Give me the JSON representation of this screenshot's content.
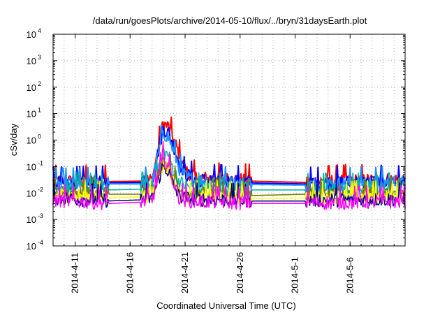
{
  "chart_data": {
    "type": "line",
    "title": "/data/run/goesPlots/archive/2014-05-10/flux/../bryn/31daysEarth.plot",
    "xlabel": "Coordinated Universal Time (UTC)",
    "ylabel": "cSv/day",
    "yscale": "log",
    "ylim_exponents": [
      -4,
      4
    ],
    "ytick_base": "10",
    "ytick_exponents": [
      "-4",
      "-3",
      "-2",
      "-1",
      "0",
      "1",
      "2",
      "3",
      "4"
    ],
    "xlim": [
      "2014-04-09",
      "2014-05-11"
    ],
    "xtick_labels": [
      "2014-4-11",
      "2014-4-16",
      "2014-4-21",
      "2014-4-26",
      "2014-5-1",
      "2014-5-6"
    ],
    "xtick_dates": [
      "2014-04-11",
      "2014-04-16",
      "2014-04-21",
      "2014-04-26",
      "2014-05-01",
      "2014-05-06"
    ],
    "grid": true,
    "data_gaps": [
      [
        "2014-04-14",
        "2014-04-17"
      ],
      [
        "2014-04-27",
        "2014-05-02"
      ]
    ],
    "series": [
      {
        "color": "#ff0000",
        "values": [
          [
            "2014-04-09",
            0.025
          ],
          [
            "2014-04-14",
            0.027
          ],
          [
            "2014-04-17",
            0.028
          ],
          [
            "2014-04-18",
            0.03
          ],
          [
            "2014-04-19",
            4.0
          ],
          [
            "2014-04-19T12",
            3.0
          ],
          [
            "2014-04-20",
            0.9
          ],
          [
            "2014-04-20T12",
            0.25
          ],
          [
            "2014-04-21",
            0.07
          ],
          [
            "2014-04-22",
            0.035
          ],
          [
            "2014-04-27",
            0.028
          ],
          [
            "2014-05-02",
            0.025
          ],
          [
            "2014-05-11",
            0.03
          ]
        ]
      },
      {
        "color": "#0000ff",
        "values": [
          [
            "2014-04-09",
            0.022
          ],
          [
            "2014-04-14",
            0.024
          ],
          [
            "2014-04-17",
            0.025
          ],
          [
            "2014-04-18",
            0.027
          ],
          [
            "2014-04-19",
            2.5
          ],
          [
            "2014-04-19T12",
            1.8
          ],
          [
            "2014-04-20",
            0.5
          ],
          [
            "2014-04-20T12",
            0.12
          ],
          [
            "2014-04-21",
            0.05
          ],
          [
            "2014-04-22",
            0.03
          ],
          [
            "2014-04-27",
            0.024
          ],
          [
            "2014-05-02",
            0.022
          ],
          [
            "2014-05-11",
            0.026
          ]
        ]
      },
      {
        "color": "#1e90ff",
        "values": [
          [
            "2014-04-09",
            0.02
          ],
          [
            "2014-04-14",
            0.022
          ],
          [
            "2014-04-17",
            0.022
          ],
          [
            "2014-04-18",
            0.024
          ],
          [
            "2014-04-19",
            1.8
          ],
          [
            "2014-04-19T12",
            1.2
          ],
          [
            "2014-04-20",
            0.3
          ],
          [
            "2014-04-20T12",
            0.08
          ],
          [
            "2014-04-21",
            0.04
          ],
          [
            "2014-04-22",
            0.027
          ],
          [
            "2014-04-27",
            0.021
          ],
          [
            "2014-05-02",
            0.02
          ],
          [
            "2014-05-11",
            0.024
          ]
        ]
      },
      {
        "color": "#00b3a0",
        "values": [
          [
            "2014-04-09",
            0.015
          ],
          [
            "2014-04-14",
            0.013
          ],
          [
            "2014-04-17",
            0.014
          ],
          [
            "2014-04-18",
            0.016
          ],
          [
            "2014-04-19",
            0.35
          ],
          [
            "2014-04-19T12",
            0.25
          ],
          [
            "2014-04-20",
            0.06
          ],
          [
            "2014-04-20T12",
            0.025
          ],
          [
            "2014-04-21",
            0.018
          ],
          [
            "2014-04-22",
            0.014
          ],
          [
            "2014-04-27",
            0.013
          ],
          [
            "2014-05-02",
            0.013
          ],
          [
            "2014-05-11",
            0.014
          ]
        ]
      },
      {
        "color": "#7a7a00",
        "values": [
          [
            "2014-04-09",
            0.01
          ],
          [
            "2014-04-14",
            0.009
          ],
          [
            "2014-04-17",
            0.009
          ],
          [
            "2014-04-18",
            0.01
          ],
          [
            "2014-04-19",
            0.15
          ],
          [
            "2014-04-19T12",
            0.1
          ],
          [
            "2014-04-20",
            0.03
          ],
          [
            "2014-04-20T12",
            0.012
          ],
          [
            "2014-04-21",
            0.01
          ],
          [
            "2014-04-22",
            0.009
          ],
          [
            "2014-04-27",
            0.008
          ],
          [
            "2014-05-02",
            0.009
          ],
          [
            "2014-05-11",
            0.009
          ]
        ]
      },
      {
        "color": "#ffff00",
        "values": [
          [
            "2014-04-09",
            0.008
          ],
          [
            "2014-04-14",
            0.0065
          ],
          [
            "2014-04-17",
            0.007
          ],
          [
            "2014-04-18",
            0.008
          ],
          [
            "2014-04-19",
            0.12
          ],
          [
            "2014-04-19T12",
            0.08
          ],
          [
            "2014-04-20",
            0.02
          ],
          [
            "2014-04-20T12",
            0.009
          ],
          [
            "2014-04-21",
            0.007
          ],
          [
            "2014-04-22",
            0.007
          ],
          [
            "2014-04-27",
            0.0062
          ],
          [
            "2014-05-02",
            0.0065
          ],
          [
            "2014-05-11",
            0.007
          ]
        ]
      },
      {
        "color": "#000080",
        "values": [
          [
            "2014-04-09",
            0.006
          ],
          [
            "2014-04-14",
            0.005
          ],
          [
            "2014-04-17",
            0.0055
          ],
          [
            "2014-04-18",
            0.006
          ],
          [
            "2014-04-19",
            0.1
          ],
          [
            "2014-04-19T12",
            0.06
          ],
          [
            "2014-04-20",
            0.015
          ],
          [
            "2014-04-20T12",
            0.007
          ],
          [
            "2014-04-21",
            0.006
          ],
          [
            "2014-04-22",
            0.0055
          ],
          [
            "2014-04-27",
            0.005
          ],
          [
            "2014-05-02",
            0.005
          ],
          [
            "2014-05-11",
            0.0055
          ]
        ]
      },
      {
        "color": "#ff00ff",
        "values": [
          [
            "2014-04-09",
            0.005
          ],
          [
            "2014-04-14",
            0.004
          ],
          [
            "2014-04-17",
            0.0045
          ],
          [
            "2014-04-18",
            0.005
          ],
          [
            "2014-04-19",
            0.2
          ],
          [
            "2014-04-19T12",
            0.09
          ],
          [
            "2014-04-20",
            0.02
          ],
          [
            "2014-04-20T12",
            0.006
          ],
          [
            "2014-04-21",
            0.005
          ],
          [
            "2014-04-22",
            0.0045
          ],
          [
            "2014-04-27",
            0.004
          ],
          [
            "2014-05-02",
            0.004
          ],
          [
            "2014-05-11",
            0.0045
          ]
        ]
      }
    ]
  }
}
